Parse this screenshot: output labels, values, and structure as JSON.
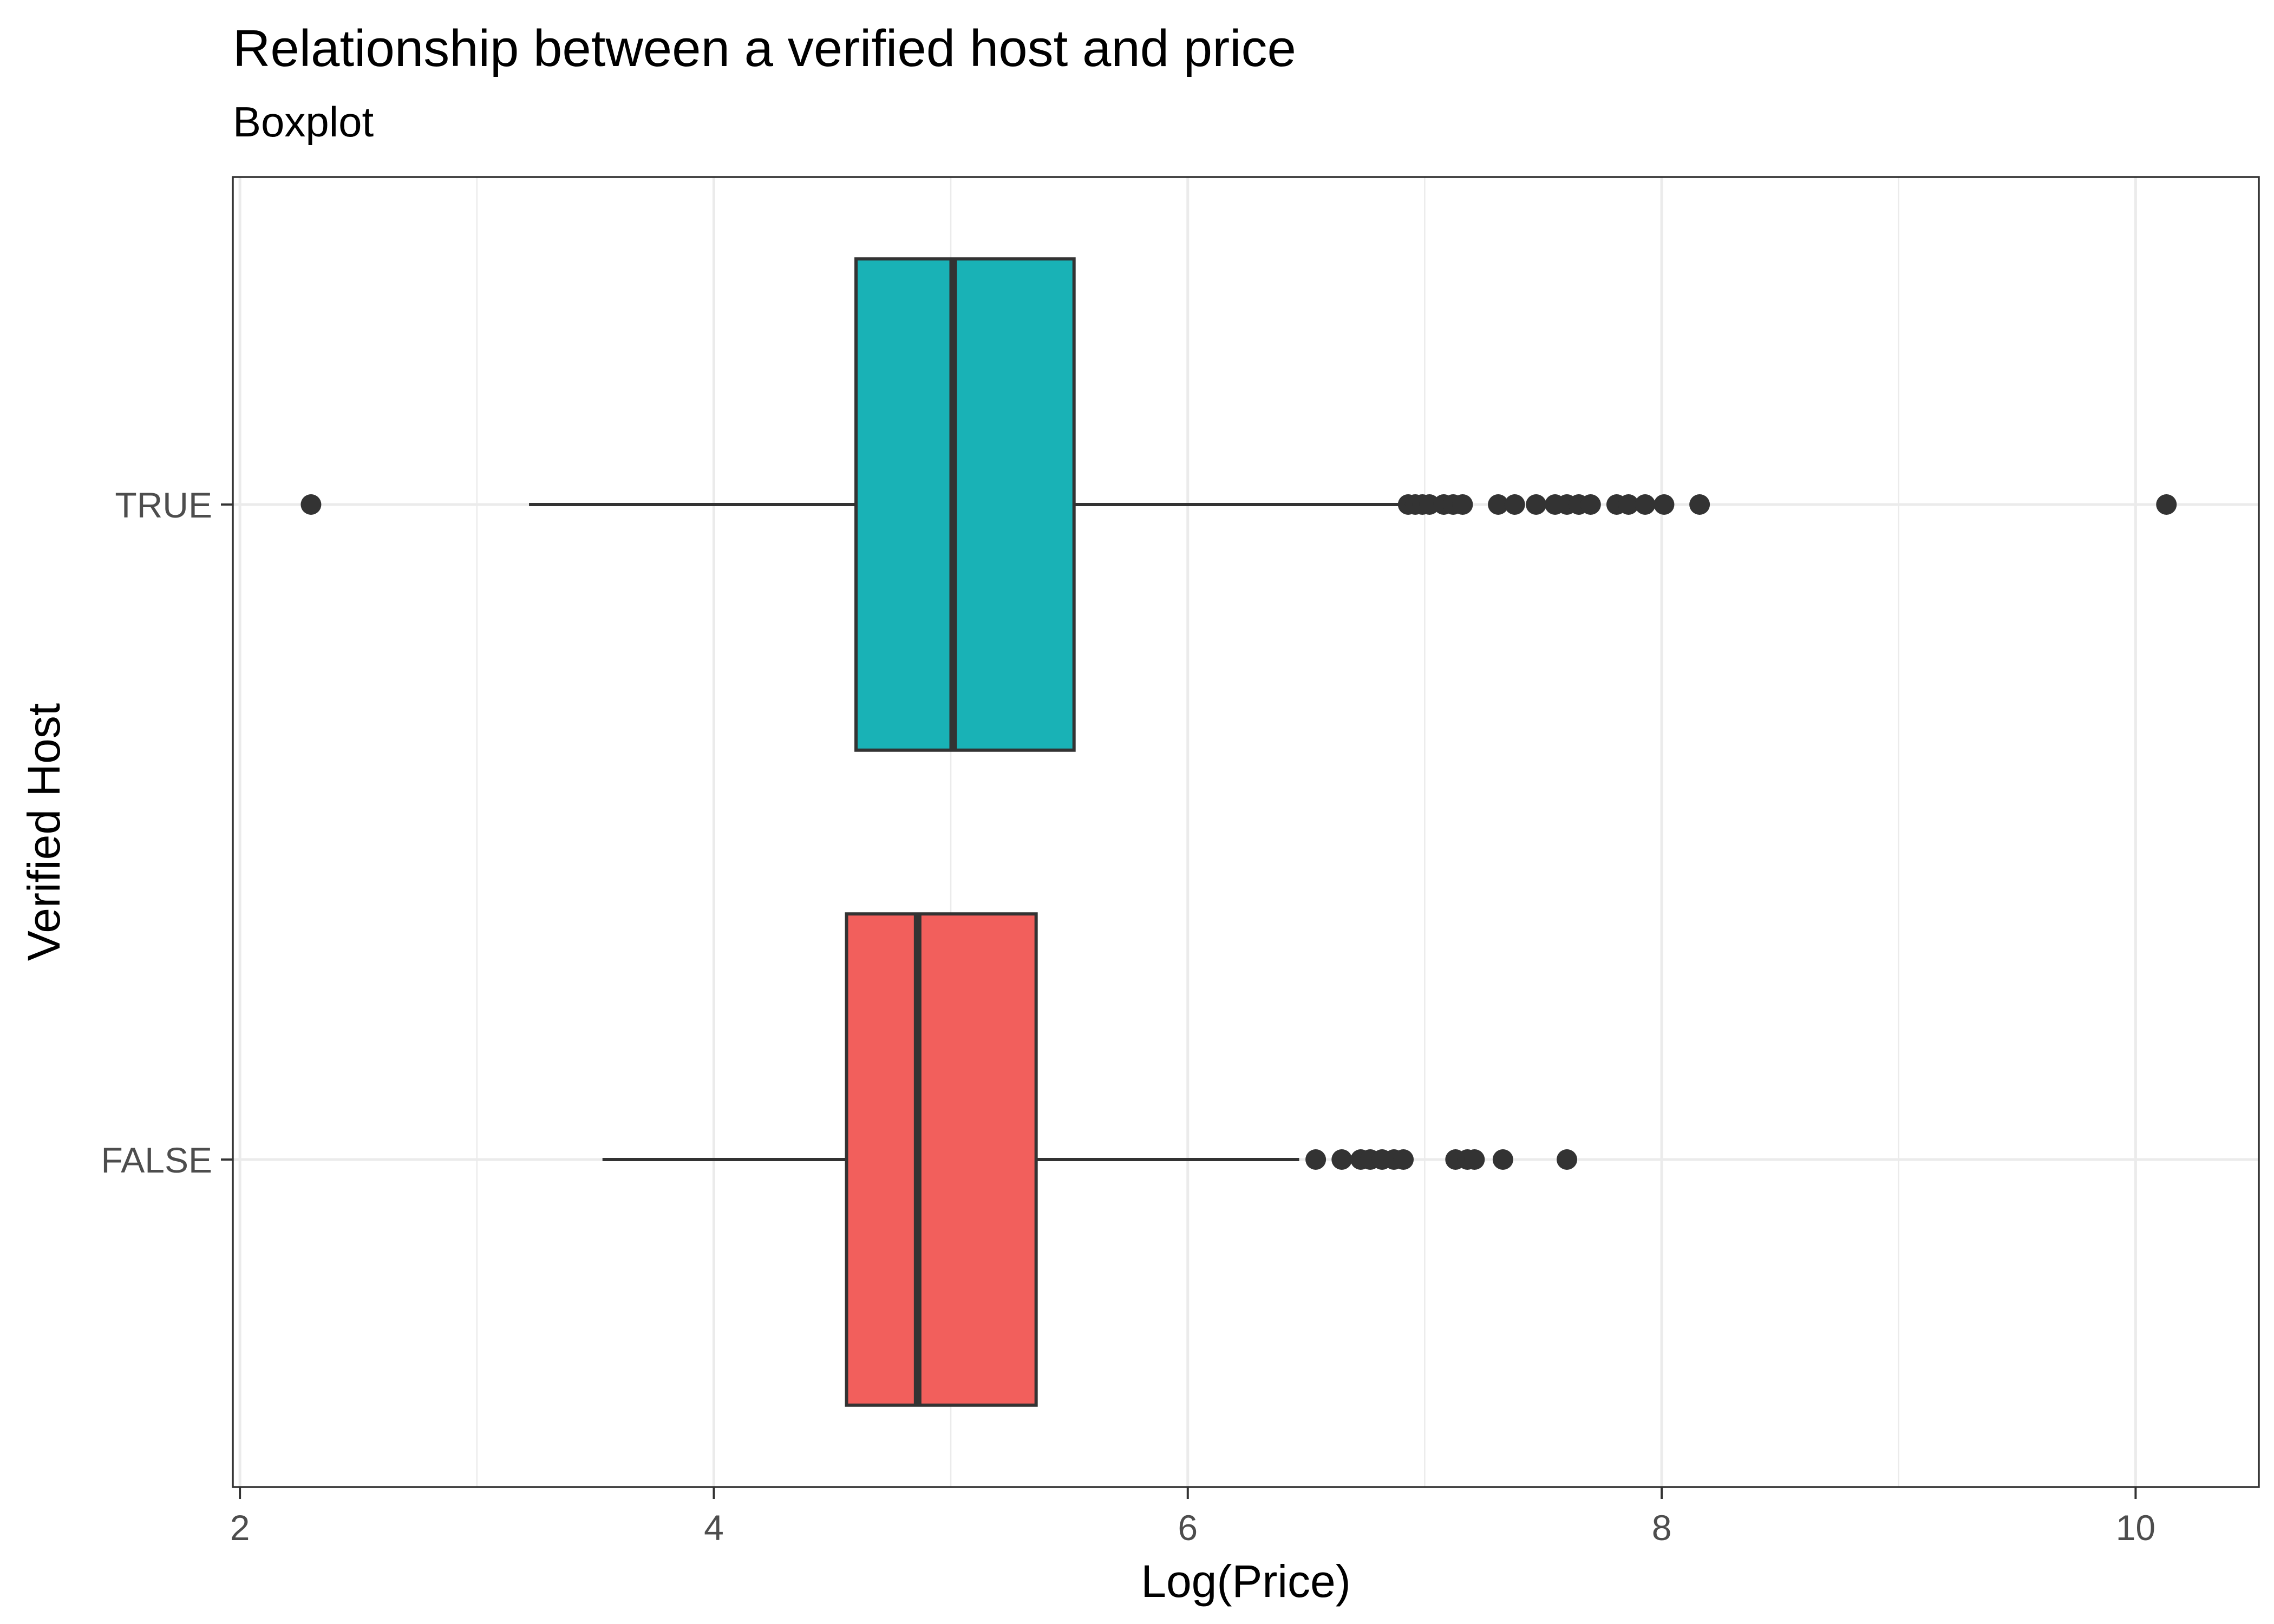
{
  "chart_data": {
    "type": "boxplot",
    "orientation": "horizontal",
    "title": "Relationship between a verified host and price",
    "subtitle": "Boxplot",
    "xlabel": "Log(Price)",
    "ylabel": "Verified Host",
    "xlim": [
      1.97,
      10.52
    ],
    "x_ticks": [
      2,
      4,
      6,
      8,
      10
    ],
    "grid": true,
    "legend": "none",
    "categories": [
      "TRUE",
      "FALSE"
    ],
    "series": [
      {
        "category": "TRUE",
        "color": "#19B2B6",
        "whisker_low": 3.22,
        "q1": 4.6,
        "median": 5.01,
        "q3": 5.52,
        "whisker_high": 6.91,
        "outliers": [
          2.3,
          6.93,
          6.96,
          6.99,
          7.02,
          7.08,
          7.12,
          7.16,
          7.31,
          7.38,
          7.47,
          7.55,
          7.6,
          7.65,
          7.7,
          7.81,
          7.86,
          7.93,
          8.01,
          8.16,
          10.13
        ]
      },
      {
        "category": "FALSE",
        "color": "#F25F5C",
        "whisker_low": 3.53,
        "q1": 4.56,
        "median": 4.86,
        "q3": 5.36,
        "whisker_high": 6.47,
        "outliers": [
          6.54,
          6.65,
          6.73,
          6.77,
          6.82,
          6.87,
          6.91,
          7.13,
          7.18,
          7.21,
          7.33,
          7.6
        ]
      }
    ]
  }
}
